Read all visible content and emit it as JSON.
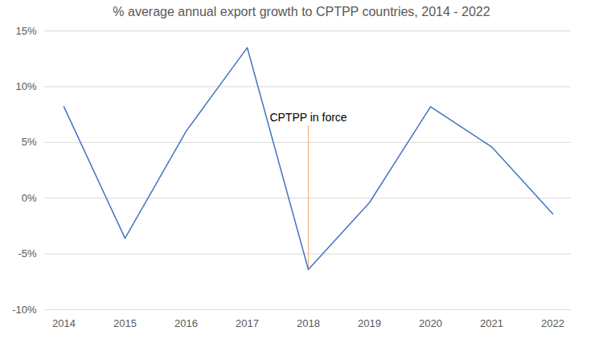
{
  "chart_data": {
    "type": "line",
    "title": "% average annual export growth to CPTPP countries, 2014 - 2022",
    "categories": [
      "2014",
      "2015",
      "2016",
      "2017",
      "2018",
      "2019",
      "2020",
      "2021",
      "2022"
    ],
    "values": [
      8.2,
      -3.6,
      6.0,
      13.5,
      -6.4,
      -0.4,
      8.2,
      4.6,
      -1.4
    ],
    "color": "#4472c4",
    "ylim": [
      -10,
      15
    ],
    "yticks": [
      {
        "value": -10,
        "label": "-10%"
      },
      {
        "value": -5,
        "label": "-5%"
      },
      {
        "value": 0,
        "label": "0%"
      },
      {
        "value": 5,
        "label": "5%"
      },
      {
        "value": 10,
        "label": "10%"
      },
      {
        "value": 15,
        "label": "15%"
      }
    ],
    "grid": true,
    "annotations": [
      {
        "text": "CPTPP in force",
        "x": "2018",
        "y": 6.5,
        "color": "#f4b183"
      }
    ]
  }
}
